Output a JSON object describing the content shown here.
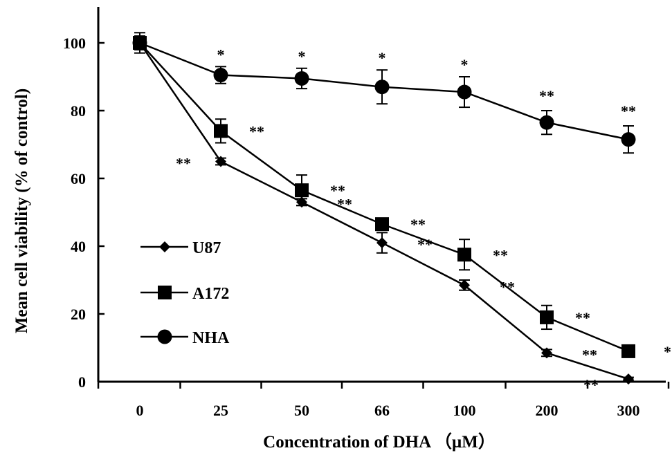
{
  "chart_data": {
    "type": "line",
    "categories": [
      "0",
      "25",
      "50",
      "66",
      "100",
      "200",
      "300"
    ],
    "xlabel": "Concentration of DHA （μM）",
    "ylabel": "Mean cell viability (% of control)",
    "ylim": [
      0,
      100
    ],
    "yticks": [
      "0",
      "20",
      "40",
      "60",
      "80",
      "100"
    ],
    "grid": false,
    "legend_position": "bottom-left",
    "series": [
      {
        "name": "U87",
        "marker": "diamond",
        "values": [
          100,
          65,
          53,
          41,
          28.5,
          8.5,
          0.8
        ],
        "errors": [
          2,
          1,
          1,
          3,
          1.5,
          1,
          0.5
        ],
        "significance": [
          "",
          "**",
          "**",
          "**",
          "**",
          "**",
          "**"
        ]
      },
      {
        "name": "A172",
        "marker": "square",
        "values": [
          100,
          74,
          56.5,
          46.5,
          37.5,
          19,
          9
        ],
        "errors": [
          2,
          3.5,
          4.5,
          1.5,
          4.5,
          3.5,
          1
        ],
        "significance": [
          "",
          "**",
          "**",
          "**",
          "**",
          "**",
          "**"
        ]
      },
      {
        "name": "NHA",
        "marker": "circle",
        "values": [
          100,
          90.5,
          89.5,
          87,
          85.5,
          76.5,
          71.5
        ],
        "errors": [
          3,
          2.5,
          3,
          5,
          4.5,
          3.5,
          4
        ],
        "significance": [
          "",
          "*",
          "*",
          "*",
          "*",
          "**",
          "**"
        ]
      }
    ]
  }
}
